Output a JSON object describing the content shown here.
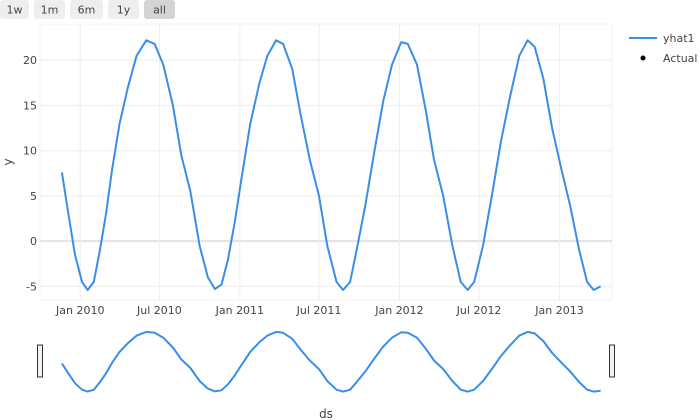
{
  "range_selector": {
    "buttons": [
      "1w",
      "1m",
      "6m",
      "1y",
      "all"
    ],
    "active": "all"
  },
  "colors": {
    "series": "#1f77b4",
    "line": "#3a8ee6",
    "grid": "#eeeeee",
    "zero": "#e3e3e3"
  },
  "chart_data": {
    "type": "line",
    "xlabel": "ds",
    "ylabel": "y",
    "x_type": "date",
    "xlim": [
      "2009-10-01",
      "2013-05-01"
    ],
    "ylim": [
      -6.5,
      24
    ],
    "x_ticks": [
      {
        "date": "2010-01-01",
        "label": "Jan 2010"
      },
      {
        "date": "2010-07-01",
        "label": "Jul 2010"
      },
      {
        "date": "2011-01-01",
        "label": "Jan 2011"
      },
      {
        "date": "2011-07-01",
        "label": "Jul 2011"
      },
      {
        "date": "2012-01-01",
        "label": "Jan 2012"
      },
      {
        "date": "2012-07-01",
        "label": "Jul 2012"
      },
      {
        "date": "2013-01-01",
        "label": "Jan 2013"
      }
    ],
    "y_ticks": [
      -5,
      0,
      5,
      10,
      15,
      20
    ],
    "grid": true,
    "legend_position": "top-right",
    "series": [
      {
        "name": "yhat1",
        "style": "line",
        "points": [
          [
            "2009-11-20",
            7.6
          ],
          [
            "2009-12-05",
            3.0
          ],
          [
            "2009-12-20",
            -1.5
          ],
          [
            "2010-01-05",
            -4.5
          ],
          [
            "2010-01-18",
            -5.4
          ],
          [
            "2010-02-01",
            -4.5
          ],
          [
            "2010-02-15",
            -1.0
          ],
          [
            "2010-03-01",
            3.0
          ],
          [
            "2010-03-15",
            8.0
          ],
          [
            "2010-04-01",
            13.0
          ],
          [
            "2010-04-20",
            17.0
          ],
          [
            "2010-05-10",
            20.5
          ],
          [
            "2010-06-01",
            22.2
          ],
          [
            "2010-06-20",
            21.8
          ],
          [
            "2010-07-10",
            19.5
          ],
          [
            "2010-08-01",
            15.0
          ],
          [
            "2010-08-20",
            9.5
          ],
          [
            "2010-09-10",
            5.5
          ],
          [
            "2010-10-01",
            -0.5
          ],
          [
            "2010-10-20",
            -4.0
          ],
          [
            "2010-11-05",
            -5.3
          ],
          [
            "2010-11-20",
            -4.8
          ],
          [
            "2010-12-05",
            -2.0
          ],
          [
            "2010-12-20",
            2.0
          ],
          [
            "2011-01-05",
            7.0
          ],
          [
            "2011-01-25",
            13.0
          ],
          [
            "2011-02-15",
            17.5
          ],
          [
            "2011-03-05",
            20.5
          ],
          [
            "2011-03-25",
            22.2
          ],
          [
            "2011-04-10",
            21.8
          ],
          [
            "2011-05-01",
            19.0
          ],
          [
            "2011-05-20",
            14.0
          ],
          [
            "2011-06-10",
            9.0
          ],
          [
            "2011-07-01",
            5.0
          ],
          [
            "2011-07-20",
            -0.5
          ],
          [
            "2011-08-10",
            -4.5
          ],
          [
            "2011-08-25",
            -5.4
          ],
          [
            "2011-09-10",
            -4.5
          ],
          [
            "2011-09-25",
            -1.0
          ],
          [
            "2011-10-15",
            4.0
          ],
          [
            "2011-11-05",
            10.0
          ],
          [
            "2011-11-25",
            15.5
          ],
          [
            "2011-12-15",
            19.5
          ],
          [
            "2012-01-05",
            22.0
          ],
          [
            "2012-01-20",
            21.8
          ],
          [
            "2012-02-10",
            19.5
          ],
          [
            "2012-03-01",
            14.5
          ],
          [
            "2012-03-20",
            9.0
          ],
          [
            "2012-04-10",
            5.0
          ],
          [
            "2012-05-01",
            -0.5
          ],
          [
            "2012-05-20",
            -4.5
          ],
          [
            "2012-06-05",
            -5.4
          ],
          [
            "2012-06-20",
            -4.5
          ],
          [
            "2012-07-10",
            -0.5
          ],
          [
            "2012-08-01",
            5.5
          ],
          [
            "2012-08-20",
            11.0
          ],
          [
            "2012-09-10",
            16.0
          ],
          [
            "2012-10-01",
            20.5
          ],
          [
            "2012-10-20",
            22.2
          ],
          [
            "2012-11-05",
            21.5
          ],
          [
            "2012-11-25",
            18.0
          ],
          [
            "2012-12-15",
            12.5
          ],
          [
            "2013-01-05",
            8.0
          ],
          [
            "2013-01-25",
            4.0
          ],
          [
            "2013-02-15",
            -1.0
          ],
          [
            "2013-03-05",
            -4.5
          ],
          [
            "2013-03-20",
            -5.4
          ],
          [
            "2013-04-05",
            -5.0
          ]
        ]
      },
      {
        "name": "Actual",
        "style": "markers",
        "points": []
      }
    ]
  }
}
